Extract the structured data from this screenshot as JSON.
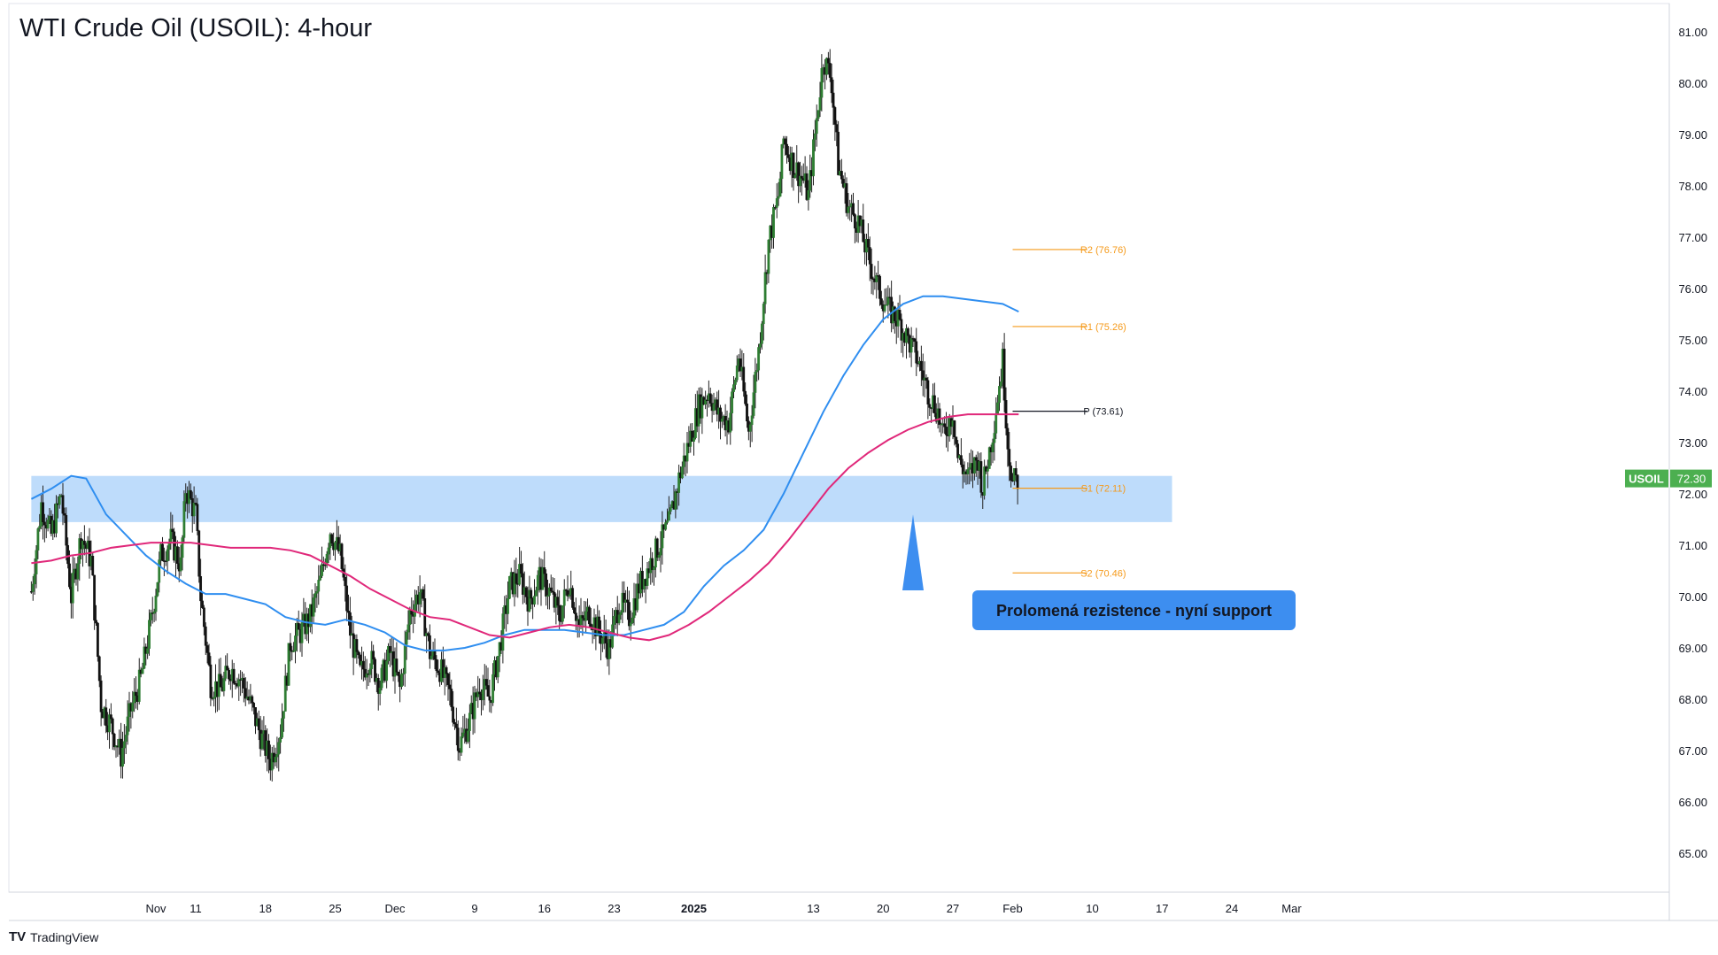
{
  "chart_data": {
    "type": "candlestick",
    "title": "WTI Crude Oil (USOIL): 4-hour",
    "symbol": "USOIL",
    "last_price": "72.30",
    "ylim": [
      64.0,
      81.5
    ],
    "y_ticks": [
      "81.00",
      "80.00",
      "79.00",
      "78.00",
      "77.00",
      "76.00",
      "75.00",
      "74.00",
      "73.00",
      "72.00",
      "71.00",
      "70.00",
      "69.00",
      "68.00",
      "67.00",
      "66.00",
      "65.00"
    ],
    "x_ticks": [
      {
        "label": "Nov",
        "day": 7
      },
      {
        "label": "11",
        "day": 11
      },
      {
        "label": "18",
        "day": 18
      },
      {
        "label": "25",
        "day": 25
      },
      {
        "label": "Dec",
        "day": 31
      },
      {
        "label": "9",
        "day": 39
      },
      {
        "label": "16",
        "day": 46
      },
      {
        "label": "23",
        "day": 53
      },
      {
        "label": "2025",
        "day": 61
      },
      {
        "label": "13",
        "day": 73
      },
      {
        "label": "20",
        "day": 80
      },
      {
        "label": "27",
        "day": 87
      },
      {
        "label": "Feb",
        "day": 93
      },
      {
        "label": "10",
        "day": 101
      },
      {
        "label": "17",
        "day": 108
      },
      {
        "label": "24",
        "day": 115
      },
      {
        "label": "Mar",
        "day": 121
      }
    ],
    "price_path": [
      [
        -5.5,
        70.1
      ],
      [
        -4.5,
        71.8
      ],
      [
        -3.5,
        71.2
      ],
      [
        -2.5,
        72.0
      ],
      [
        -1.5,
        70.0
      ],
      [
        -0.5,
        71.2
      ],
      [
        0.5,
        70.7
      ],
      [
        1.5,
        67.9
      ],
      [
        2.5,
        67.5
      ],
      [
        3.5,
        66.9
      ],
      [
        4.5,
        67.8
      ],
      [
        5.5,
        68.4
      ],
      [
        6.5,
        69.5
      ],
      [
        7.5,
        70.8
      ],
      [
        8.5,
        71.1
      ],
      [
        9.5,
        70.6
      ],
      [
        10.0,
        72.1
      ],
      [
        11.0,
        71.6
      ],
      [
        11.5,
        70.0
      ],
      [
        12.5,
        68.3
      ],
      [
        13.5,
        68.2
      ],
      [
        14.5,
        68.6
      ],
      [
        15.5,
        68.4
      ],
      [
        16.5,
        67.9
      ],
      [
        17.5,
        67.3
      ],
      [
        18.5,
        66.8
      ],
      [
        19.5,
        67.4
      ],
      [
        20.5,
        69.1
      ],
      [
        21.5,
        69.3
      ],
      [
        22.5,
        69.6
      ],
      [
        23.5,
        70.3
      ],
      [
        24.5,
        71.3
      ],
      [
        25.5,
        70.8
      ],
      [
        26.5,
        69.3
      ],
      [
        27.5,
        68.5
      ],
      [
        28.5,
        68.8
      ],
      [
        29.5,
        68.3
      ],
      [
        30.5,
        68.9
      ],
      [
        31.5,
        68.2
      ],
      [
        32.5,
        69.7
      ],
      [
        33.5,
        70.1
      ],
      [
        34.5,
        68.9
      ],
      [
        35.5,
        68.6
      ],
      [
        36.5,
        68.1
      ],
      [
        37.5,
        67.1
      ],
      [
        38.5,
        67.6
      ],
      [
        39.5,
        68.3
      ],
      [
        40.5,
        68.0
      ],
      [
        41.5,
        69.0
      ],
      [
        42.5,
        70.2
      ],
      [
        43.5,
        70.4
      ],
      [
        44.5,
        69.9
      ],
      [
        45.5,
        70.4
      ],
      [
        46.5,
        70.1
      ],
      [
        47.5,
        69.6
      ],
      [
        48.5,
        70.3
      ],
      [
        49.5,
        69.4
      ],
      [
        50.5,
        69.7
      ],
      [
        51.5,
        69.3
      ],
      [
        52.5,
        69.0
      ],
      [
        53.5,
        69.9
      ],
      [
        54.5,
        69.6
      ],
      [
        55.5,
        70.2
      ],
      [
        56.5,
        70.6
      ],
      [
        57.5,
        71.0
      ],
      [
        58.5,
        71.4
      ],
      [
        59.5,
        72.3
      ],
      [
        60.5,
        73.0
      ],
      [
        61.5,
        73.7
      ],
      [
        62.5,
        74.0
      ],
      [
        63.5,
        73.5
      ],
      [
        64.5,
        73.4
      ],
      [
        65.5,
        74.7
      ],
      [
        66.5,
        73.2
      ],
      [
        67.5,
        74.8
      ],
      [
        68.5,
        76.9
      ],
      [
        69.5,
        77.8
      ],
      [
        70.0,
        78.9
      ],
      [
        71.0,
        78.4
      ],
      [
        72.0,
        78.1
      ],
      [
        72.5,
        77.8
      ],
      [
        73.5,
        79.6
      ],
      [
        74.0,
        80.5
      ],
      [
        74.8,
        80.1
      ],
      [
        75.5,
        78.4
      ],
      [
        76.5,
        77.6
      ],
      [
        77.5,
        77.3
      ],
      [
        78.5,
        76.6
      ],
      [
        79.5,
        76.0
      ],
      [
        80.5,
        75.6
      ],
      [
        81.5,
        75.4
      ],
      [
        82.5,
        75.0
      ],
      [
        83.5,
        74.6
      ],
      [
        84.5,
        74.0
      ],
      [
        85.5,
        73.6
      ],
      [
        86.0,
        73.1
      ],
      [
        87.0,
        73.6
      ],
      [
        87.5,
        72.7
      ],
      [
        88.5,
        72.3
      ],
      [
        89.5,
        72.7
      ],
      [
        90.0,
        72.1
      ],
      [
        91.0,
        73.2
      ],
      [
        92.0,
        74.6
      ],
      [
        92.5,
        73.0
      ],
      [
        93.0,
        72.2
      ],
      [
        93.6,
        72.3
      ]
    ],
    "overlays": [
      {
        "name": "blue-moving-average",
        "color": "#2f8ef0",
        "points": [
          [
            -5.5,
            71.9
          ],
          [
            -3.5,
            72.1
          ],
          [
            -1.5,
            72.35
          ],
          [
            0,
            72.3
          ],
          [
            2,
            71.6
          ],
          [
            4,
            71.2
          ],
          [
            6,
            70.8
          ],
          [
            8,
            70.5
          ],
          [
            10,
            70.25
          ],
          [
            12,
            70.05
          ],
          [
            14,
            70.05
          ],
          [
            16,
            69.95
          ],
          [
            18,
            69.85
          ],
          [
            20,
            69.6
          ],
          [
            22,
            69.5
          ],
          [
            24,
            69.45
          ],
          [
            26,
            69.55
          ],
          [
            28,
            69.45
          ],
          [
            30,
            69.3
          ],
          [
            32,
            69.05
          ],
          [
            34,
            68.95
          ],
          [
            36,
            68.95
          ],
          [
            38,
            69.0
          ],
          [
            40,
            69.1
          ],
          [
            42,
            69.25
          ],
          [
            44,
            69.35
          ],
          [
            46,
            69.35
          ],
          [
            48,
            69.35
          ],
          [
            50,
            69.3
          ],
          [
            52,
            69.25
          ],
          [
            54,
            69.25
          ],
          [
            56,
            69.35
          ],
          [
            58,
            69.45
          ],
          [
            60,
            69.7
          ],
          [
            62,
            70.2
          ],
          [
            64,
            70.6
          ],
          [
            66,
            70.9
          ],
          [
            68,
            71.3
          ],
          [
            70,
            72.0
          ],
          [
            72,
            72.8
          ],
          [
            74,
            73.6
          ],
          [
            76,
            74.3
          ],
          [
            78,
            74.9
          ],
          [
            80,
            75.4
          ],
          [
            82,
            75.7
          ],
          [
            84,
            75.85
          ],
          [
            86,
            75.85
          ],
          [
            88,
            75.8
          ],
          [
            90,
            75.75
          ],
          [
            92,
            75.7
          ],
          [
            93.6,
            75.55
          ]
        ]
      },
      {
        "name": "magenta-moving-average",
        "color": "#e0287a",
        "points": [
          [
            -5.5,
            70.65
          ],
          [
            -3.5,
            70.7
          ],
          [
            -1.5,
            70.8
          ],
          [
            0.5,
            70.85
          ],
          [
            2.5,
            70.95
          ],
          [
            4.5,
            71.0
          ],
          [
            6.5,
            71.05
          ],
          [
            8.5,
            71.05
          ],
          [
            10.5,
            71.05
          ],
          [
            12.5,
            71.0
          ],
          [
            14.5,
            70.95
          ],
          [
            16.5,
            70.95
          ],
          [
            18.5,
            70.95
          ],
          [
            20.5,
            70.9
          ],
          [
            22.5,
            70.8
          ],
          [
            24.5,
            70.6
          ],
          [
            26.5,
            70.4
          ],
          [
            28.5,
            70.15
          ],
          [
            30.5,
            69.95
          ],
          [
            32.5,
            69.75
          ],
          [
            34.5,
            69.6
          ],
          [
            36.5,
            69.55
          ],
          [
            38.5,
            69.4
          ],
          [
            40.5,
            69.25
          ],
          [
            42.5,
            69.2
          ],
          [
            44.5,
            69.3
          ],
          [
            46.5,
            69.4
          ],
          [
            48.5,
            69.45
          ],
          [
            50.5,
            69.4
          ],
          [
            52.5,
            69.3
          ],
          [
            54.5,
            69.2
          ],
          [
            56.5,
            69.15
          ],
          [
            58.5,
            69.25
          ],
          [
            60.5,
            69.45
          ],
          [
            62.5,
            69.7
          ],
          [
            64.5,
            70.0
          ],
          [
            66.5,
            70.3
          ],
          [
            68.5,
            70.65
          ],
          [
            70.5,
            71.1
          ],
          [
            72.5,
            71.6
          ],
          [
            74.5,
            72.1
          ],
          [
            76.5,
            72.5
          ],
          [
            78.5,
            72.8
          ],
          [
            80.5,
            73.05
          ],
          [
            82.5,
            73.25
          ],
          [
            84.5,
            73.4
          ],
          [
            86.5,
            73.5
          ],
          [
            88.5,
            73.55
          ],
          [
            90.5,
            73.55
          ],
          [
            92.5,
            73.55
          ],
          [
            93.6,
            73.55
          ]
        ]
      }
    ],
    "zone": {
      "y_top": 72.35,
      "y_bottom": 71.45,
      "x_start": -5.5,
      "x_end": 109.0,
      "color": "#bbdafb"
    },
    "pivot_levels": [
      {
        "label": "R2 (76.76)",
        "value": 76.76,
        "color": "#f59a1b"
      },
      {
        "label": "R1 (75.26)",
        "value": 75.26,
        "color": "#f59a1b"
      },
      {
        "label": "P (73.61)",
        "value": 73.61,
        "color": "#131722"
      },
      {
        "label": "S1 (72.11)",
        "value": 72.11,
        "color": "#f59a1b"
      },
      {
        "label": "S2 (70.46)",
        "value": 70.46,
        "color": "#f59a1b"
      }
    ],
    "pivot_x_range": [
      93.0,
      100.5
    ],
    "annotation": {
      "text": "Prolomená rezistence - nyní support",
      "color": "#3d8ef0",
      "text_color": "#131722",
      "anchor_day": 83.0,
      "anchor_price": 71.6
    },
    "colors": {
      "up": "#26a69a",
      "down": "#131722",
      "up_candle": "#2e7d32",
      "down_candle": "#111111",
      "price_tag": "#4caf50"
    }
  },
  "footer": {
    "brand": "TradingView",
    "brand_mark": "TV"
  }
}
